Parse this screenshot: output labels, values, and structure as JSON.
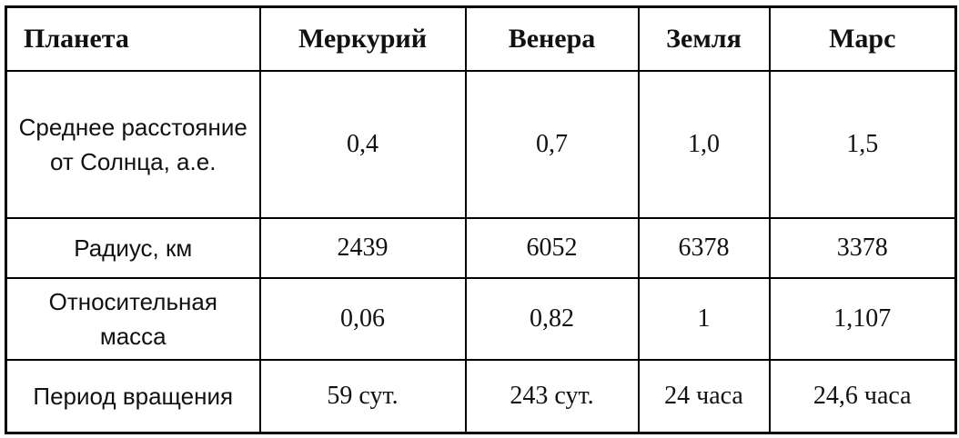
{
  "table": {
    "header": [
      "Планета",
      "Меркурий",
      "Венера",
      "Земля",
      "Марс"
    ],
    "rows": [
      [
        "Среднее расстояние от Солнца, а.е.",
        "0,4",
        "0,7",
        "1,0",
        "1,5"
      ],
      [
        "Радиус, км",
        "2439",
        "6052",
        "6378",
        "3378"
      ],
      [
        "Относительная масса",
        "0,06",
        "0,82",
        "1",
        "1,107"
      ],
      [
        "Период вращения",
        "59 сут.",
        "243 сут.",
        "24 часа",
        "24,6 часа"
      ]
    ]
  }
}
